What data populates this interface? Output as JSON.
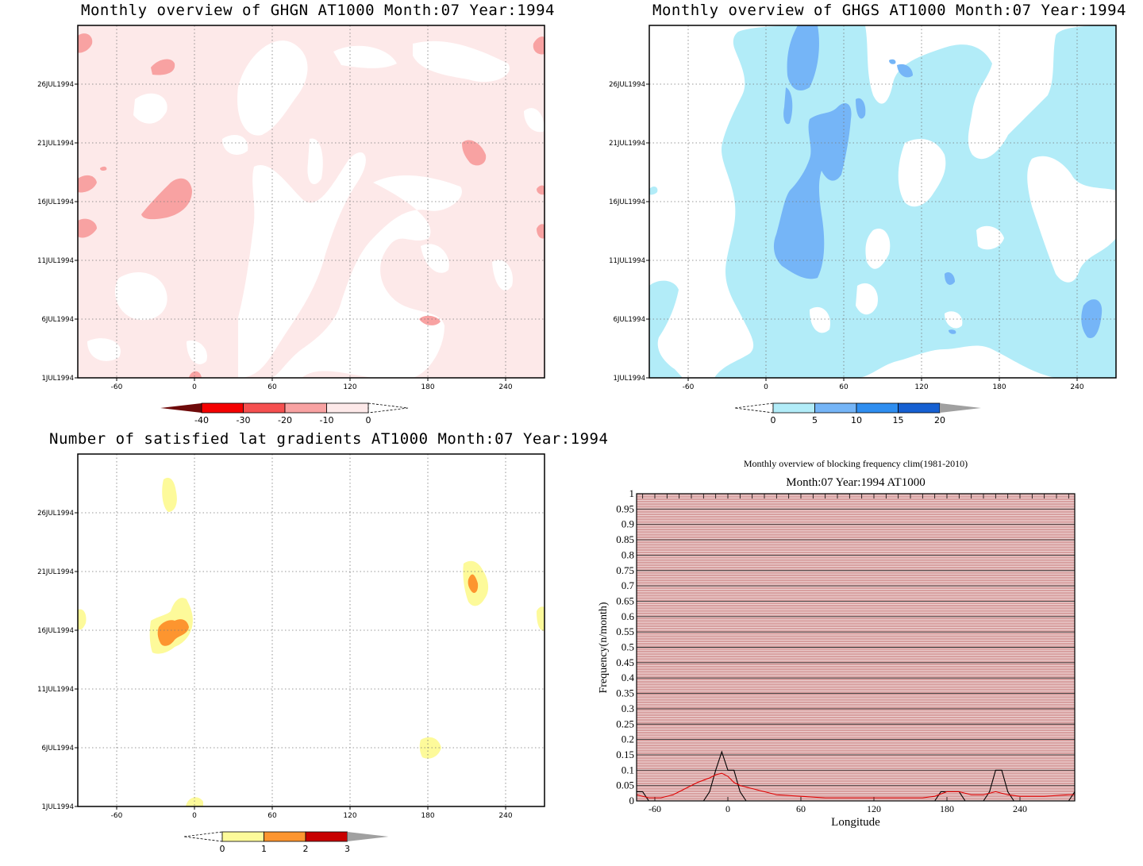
{
  "panels": {
    "ghgn": {
      "title": "Monthly overview of GHGN AT1000 Month:07 Year:1994",
      "colorbar": {
        "labels": [
          "-40",
          "-30",
          "-20",
          "-10",
          "0"
        ],
        "colors": [
          "#6e0a0a",
          "#f40000",
          "#f55050",
          "#f8a2a2",
          "#fde9e9"
        ]
      }
    },
    "ghgs": {
      "title": "Monthly overview of GHGS AT1000 Month:07 Year:1994",
      "colorbar": {
        "labels": [
          "0",
          "5",
          "10",
          "15",
          "20"
        ],
        "colors": [
          "#b2ecf8",
          "#75b5f7",
          "#2f8ef0",
          "#1660d2",
          "#a0a0a0"
        ]
      }
    },
    "lat": {
      "title": "Number of satisfied lat gradients AT1000 Month:07 Year:1994",
      "colorbar": {
        "labels": [
          "0",
          "1",
          "2",
          "3"
        ],
        "colors": [
          "#fdfa9a",
          "#fd952f",
          "#c80000",
          "#a0a0a0"
        ]
      }
    },
    "freq": {
      "title": "Monthly overview of blocking frequency clim(1981-2010)",
      "subtitle": "Month:07 Year:1994  AT1000",
      "xlabel": "Longitude",
      "ylabel": "Frequency(n/month)"
    }
  },
  "shared_axes": {
    "y_ticks": [
      "26JUL1994",
      "21JUL1994",
      "16JUL1994",
      "11JUL1994",
      "6JUL1994",
      "1JUL1994"
    ],
    "x_ticks": [
      "-60",
      "0",
      "60",
      "120",
      "180",
      "240"
    ]
  },
  "colors": {
    "grid": "#555555",
    "black_line": "#000000",
    "red_line": "#e00000",
    "freq_bg": "#d8a0a0"
  },
  "chart_data": [
    {
      "type": "heatmap",
      "title": "Monthly overview of GHGN AT1000 Month:07 Year:1994",
      "xlim": [
        -90,
        270
      ],
      "x_ticks": [
        -60,
        0,
        60,
        120,
        180,
        240
      ],
      "y_ticks": [
        "26JUL1994",
        "21JUL1994",
        "16JUL1994",
        "11JUL1994",
        "6JUL1994",
        "1JUL1994"
      ],
      "levels": [
        -40,
        -30,
        -20,
        -10,
        0
      ],
      "background_level": "-10 to 0",
      "low_patches": [
        {
          "lon": -85,
          "date": "29JUL1994",
          "level": "-20 to -10"
        },
        {
          "lon": -20,
          "date": "27JUL1994",
          "level": "-20 to -10"
        },
        {
          "lon": -85,
          "date": "18JUL1994",
          "level": "-20 to -10"
        },
        {
          "lon": -15,
          "date": "17JUL1994",
          "level": "-20 to -10"
        },
        {
          "lon": -85,
          "date": "14JUL1994",
          "level": "-20 to -10"
        },
        {
          "lon": 215,
          "date": "21JUL1994",
          "level": "-20 to -10"
        },
        {
          "lon": 190,
          "date": "6JUL1994",
          "level": "-20 to -10"
        },
        {
          "lon": 265,
          "date": "29JUL1994",
          "level": "-20 to -10"
        }
      ]
    },
    {
      "type": "heatmap",
      "title": "Monthly overview of GHGS AT1000 Month:07 Year:1994",
      "xlim": [
        -90,
        270
      ],
      "x_ticks": [
        -60,
        0,
        60,
        120,
        180,
        240
      ],
      "y_ticks": [
        "26JUL1994",
        "21JUL1994",
        "16JUL1994",
        "11JUL1994",
        "6JUL1994",
        "1JUL1994"
      ],
      "levels": [
        0,
        5,
        10,
        15,
        20
      ],
      "high_patches": [
        {
          "lon": 50,
          "date": "27JUL1994",
          "level": "5 to 10"
        },
        {
          "lon": 40,
          "date": "14JUL1994",
          "level": "5 to 10"
        },
        {
          "lon": 60,
          "date": "20JUL1994",
          "level": "5 to 10"
        },
        {
          "lon": 262,
          "date": "5JUL1994",
          "level": "5 to 10"
        }
      ]
    },
    {
      "type": "heatmap",
      "title": "Number of satisfied lat gradients AT1000 Month:07 Year:1994",
      "xlim": [
        -90,
        270
      ],
      "x_ticks": [
        -60,
        0,
        60,
        120,
        180,
        240
      ],
      "y_ticks": [
        "26JUL1994",
        "21JUL1994",
        "16JUL1994",
        "11JUL1994",
        "6JUL1994",
        "1JUL1994"
      ],
      "levels": [
        0,
        1,
        2,
        3
      ],
      "patches": [
        {
          "lon": -10,
          "date": "27JUL1994",
          "value": 1
        },
        {
          "lon": -5,
          "date": "16JUL1994",
          "value": 2
        },
        {
          "lon": 225,
          "date": "20JUL1994",
          "value": 2
        },
        {
          "lon": 190,
          "date": "6JUL1994",
          "value": 1
        },
        {
          "lon": -88,
          "date": "17JUL1994",
          "value": 1
        },
        {
          "lon": 268,
          "date": "17JUL1994",
          "value": 1
        },
        {
          "lon": 10,
          "date": "1JUL1994",
          "value": 1
        }
      ]
    },
    {
      "type": "line",
      "title": "Monthly overview of blocking frequency clim(1981-2010)",
      "subtitle": "Month:07 Year:1994  AT1000",
      "xlabel": "Longitude",
      "ylabel": "Frequency(n/month)",
      "xlim": [
        -75,
        285
      ],
      "ylim": [
        0,
        1
      ],
      "x_ticks": [
        -60,
        0,
        60,
        120,
        180,
        240
      ],
      "y_ticks": [
        0,
        0.05,
        0.1,
        0.15,
        0.2,
        0.25,
        0.3,
        0.35,
        0.4,
        0.45,
        0.5,
        0.55,
        0.6,
        0.65,
        0.7,
        0.75,
        0.8,
        0.85,
        0.9,
        0.95,
        1
      ],
      "grid": true,
      "series": [
        {
          "color": "#000000",
          "x": [
            -75,
            -70,
            -65,
            -60,
            -55,
            -50,
            -45,
            -40,
            -35,
            -30,
            -25,
            -20,
            -15,
            -10,
            -5,
            0,
            5,
            10,
            15,
            20,
            25,
            30,
            60,
            120,
            170,
            175,
            180,
            185,
            190,
            195,
            200,
            205,
            210,
            215,
            220,
            225,
            230,
            235,
            240,
            250,
            260,
            270,
            280,
            285
          ],
          "y": [
            0.03,
            0.03,
            0.0,
            0.0,
            0.0,
            0.0,
            0.0,
            0.0,
            0.0,
            0.0,
            0.0,
            0.0,
            0.03,
            0.1,
            0.16,
            0.1,
            0.1,
            0.03,
            0.0,
            0.0,
            0.0,
            0.0,
            0.0,
            0.0,
            0.0,
            0.03,
            0.03,
            0.03,
            0.03,
            0.0,
            0.0,
            0.0,
            0.0,
            0.03,
            0.1,
            0.1,
            0.03,
            0.0,
            0.0,
            0.0,
            0.0,
            0.0,
            0.0,
            0.03
          ]
        },
        {
          "color": "#e00000",
          "x": [
            -75,
            -65,
            -55,
            -45,
            -35,
            -25,
            -15,
            -10,
            -5,
            0,
            5,
            10,
            20,
            30,
            40,
            60,
            80,
            100,
            120,
            140,
            160,
            170,
            180,
            190,
            200,
            210,
            220,
            230,
            240,
            260,
            280,
            285
          ],
          "y": [
            0.02,
            0.01,
            0.01,
            0.02,
            0.04,
            0.06,
            0.075,
            0.085,
            0.09,
            0.08,
            0.06,
            0.05,
            0.04,
            0.03,
            0.02,
            0.015,
            0.01,
            0.01,
            0.01,
            0.01,
            0.01,
            0.015,
            0.03,
            0.03,
            0.02,
            0.02,
            0.03,
            0.02,
            0.015,
            0.015,
            0.02,
            0.02
          ]
        }
      ]
    }
  ]
}
